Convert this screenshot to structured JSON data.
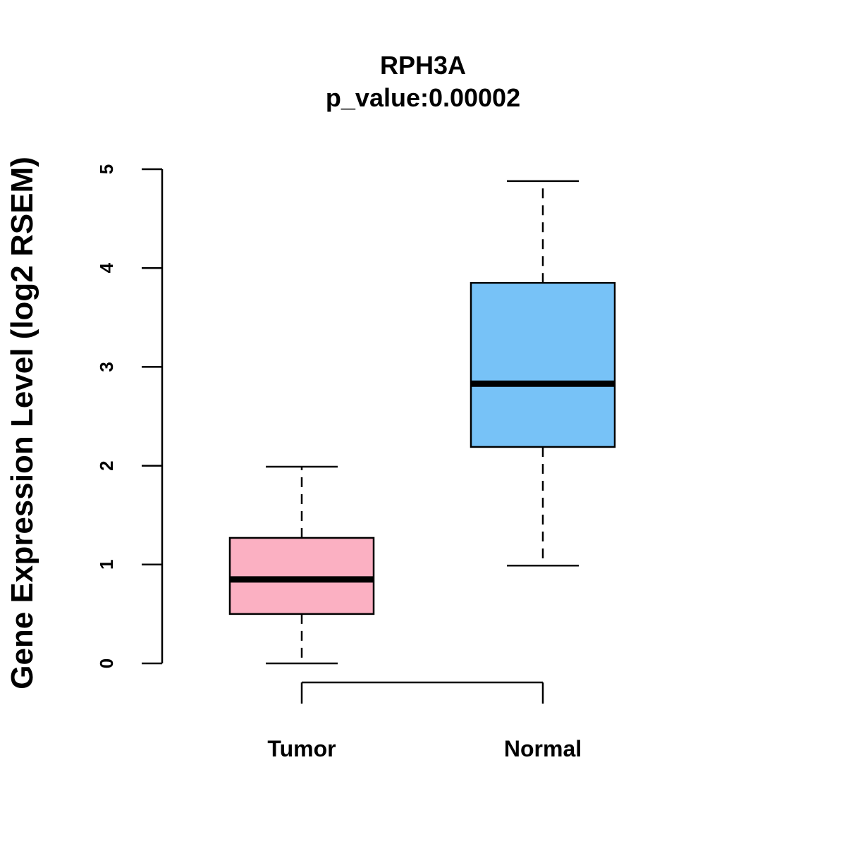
{
  "chart_data": {
    "type": "boxplot",
    "title": "RPH3A",
    "subtitle": "p_value:0.00002",
    "xlabel": "",
    "ylabel": "Gene Expression Level (log2 RSEM)",
    "ylim": [
      0,
      5
    ],
    "yticks": [
      "0",
      "1",
      "2",
      "3",
      "4",
      "5"
    ],
    "categories": [
      "Tumor",
      "Normal"
    ],
    "boxes": [
      {
        "name": "Tumor",
        "whisker_low": 0.0,
        "q1": 0.5,
        "median": 0.85,
        "q3": 1.27,
        "whisker_high": 1.99,
        "color": "#FBB0C2"
      },
      {
        "name": "Normal",
        "whisker_low": 0.99,
        "q1": 2.19,
        "median": 2.83,
        "q3": 3.85,
        "whisker_high": 4.88,
        "color": "#77C2F7"
      }
    ],
    "grid": false,
    "legend": "none"
  }
}
